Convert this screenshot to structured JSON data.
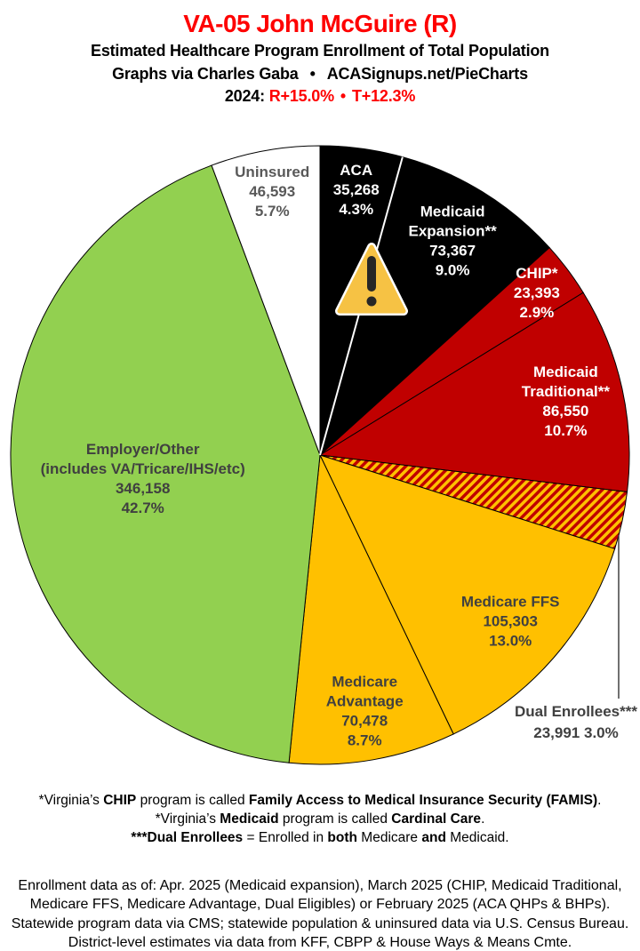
{
  "header": {
    "title": "VA-05 John McGuire (R)",
    "title_color": "#FE0000",
    "subtitle": "Estimated Healthcare Program Enrollment of Total Population",
    "attribution": "Graphs via Charles Gaba",
    "bullet": "•",
    "site": "ACASignups.net/PieCharts",
    "year_label": "2024:",
    "lean_r": "R+15.0%",
    "lean_t": "T+12.3%",
    "lean_color": "#FE0000"
  },
  "chart_data": {
    "type": "pie",
    "title": "Estimated Healthcare Program Enrollment of Total Population",
    "legend_position": "labels-on-slices",
    "start_angle_deg": 0,
    "direction": "clockwise",
    "slices": [
      {
        "name": "ACA",
        "lines": [
          "ACA"
        ],
        "enrollment": "35,268",
        "percent": 4.3,
        "percent_label": "4.3%",
        "color": "#000000",
        "text_color": "#FFFFFF"
      },
      {
        "name": "Medicaid Expansion**",
        "lines": [
          "Medicaid",
          "Expansion**"
        ],
        "enrollment": "73,367",
        "percent": 9.0,
        "percent_label": "9.0%",
        "color": "#000000",
        "text_color": "#FFFFFF"
      },
      {
        "name": "CHIP*",
        "lines": [
          "CHIP*"
        ],
        "enrollment": "23,393",
        "percent": 2.9,
        "percent_label": "2.9%",
        "color": "#C00000",
        "text_color": "#FFFFFF"
      },
      {
        "name": "Medicaid Traditional**",
        "lines": [
          "Medicaid",
          "Traditional**"
        ],
        "enrollment": "86,550",
        "percent": 10.7,
        "percent_label": "10.7%",
        "color": "#C00000",
        "text_color": "#FFFFFF"
      },
      {
        "name": "Dual Enrollees***",
        "lines": [
          "Dual Enrollees***"
        ],
        "enrollment": "23,991",
        "percent": 3.0,
        "percent_label": "3.0%",
        "color": "hatch-red-gold",
        "text_color": "#404040",
        "external_label": true,
        "external_value_line": "23,991 3.0%"
      },
      {
        "name": "Medicare FFS",
        "lines": [
          "Medicare FFS"
        ],
        "enrollment": "105,303",
        "percent": 13.0,
        "percent_label": "13.0%",
        "color": "#FFC000",
        "text_color": "#404040"
      },
      {
        "name": "Medicare Advantage",
        "lines": [
          "Medicare",
          "Advantage"
        ],
        "enrollment": "70,478",
        "percent": 8.7,
        "percent_label": "8.7%",
        "color": "#FFC000",
        "text_color": "#404040"
      },
      {
        "name": "Employer/Other",
        "lines": [
          "Employer/Other",
          "(includes VA/Tricare/IHS/etc)"
        ],
        "enrollment": "346,158",
        "percent": 42.7,
        "percent_label": "42.7%",
        "color": "#92D050",
        "text_color": "#404040"
      },
      {
        "name": "Uninsured",
        "lines": [
          "Uninsured"
        ],
        "enrollment": "46,593",
        "percent": 5.7,
        "percent_label": "5.7%",
        "color": "#FFFFFF",
        "text_color": "#595959"
      }
    ],
    "hatch_colors": [
      "#C00000",
      "#FFC000"
    ],
    "slice_border_color": "#000000",
    "black_slice_divider_color": "#FFFFFF",
    "leader_line_color": "#404040",
    "warning_icon": {
      "fill": "#F6C244",
      "rim": "#FFFFFF",
      "mark_color": "#262626"
    }
  },
  "footnotes": [
    [
      {
        "t": "*Virginia’s ",
        "b": false
      },
      {
        "t": "CHIP",
        "b": true
      },
      {
        "t": " program is called ",
        "b": false
      },
      {
        "t": "Family Access to Medical Insurance Security (FAMIS)",
        "b": true
      },
      {
        "t": ".",
        "b": false
      }
    ],
    [
      {
        "t": "*Virginia’s ",
        "b": false
      },
      {
        "t": "Medicaid",
        "b": true
      },
      {
        "t": " program is called ",
        "b": false
      },
      {
        "t": "Cardinal Care",
        "b": true
      },
      {
        "t": ".",
        "b": false
      }
    ],
    [
      {
        "t": "***Dual Enrollees",
        "b": true
      },
      {
        "t": " = Enrolled in ",
        "b": false
      },
      {
        "t": "both",
        "b": true
      },
      {
        "t": " Medicare ",
        "b": false
      },
      {
        "t": "and",
        "b": true
      },
      {
        "t": " Medicaid.",
        "b": false
      }
    ]
  ],
  "disclaimer": [
    "Enrollment data as of: Apr. 2025 (Medicaid expansion), March 2025 (CHIP, Medicaid Traditional,",
    "Medicare FFS, Medicare Advantage, Dual Eligibles) or February 2025 (ACA QHPs & BHPs).",
    "Statewide program data via CMS; statewide population & uninsured data via U.S. Census Bureau.",
    "District-level estimates via data from KFF, CBPP & House Ways & Means Cmte."
  ]
}
